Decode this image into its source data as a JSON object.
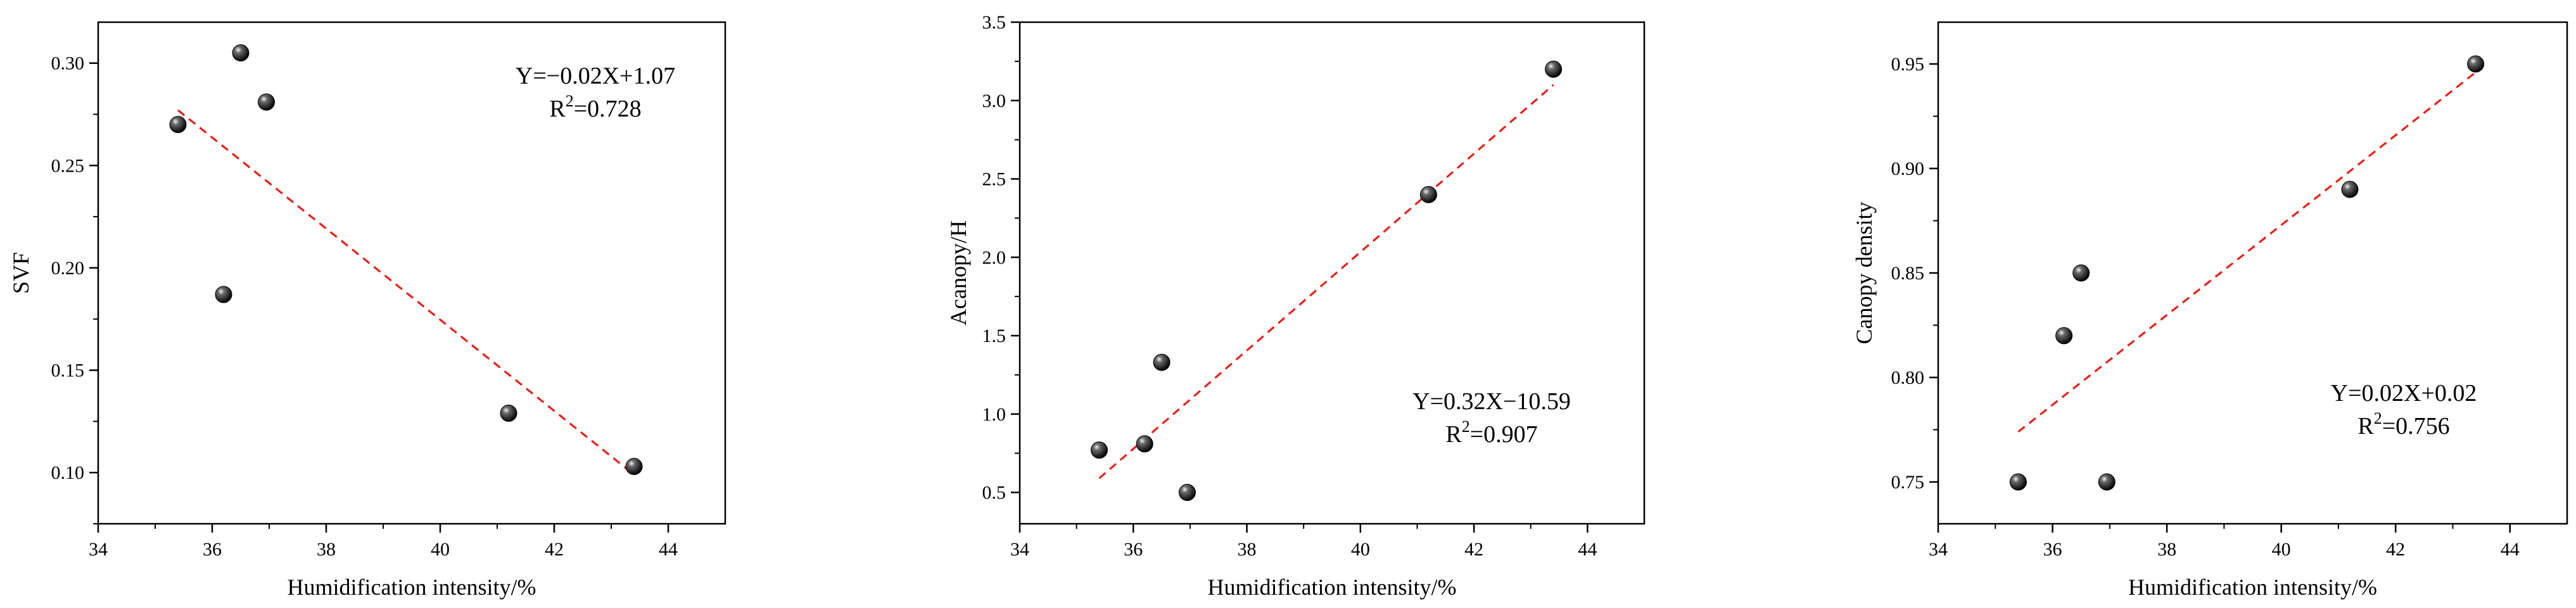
{
  "chart_data": [
    {
      "type": "scatter",
      "xlabel": "Humidification intensity/%",
      "ylabel": "SVF",
      "xlim": [
        34,
        45
      ],
      "ylim": [
        0.075,
        0.32
      ],
      "xticks": [
        "34",
        "36",
        "38",
        "40",
        "42",
        "44"
      ],
      "yticks": [
        "0.10",
        "0.15",
        "0.20",
        "0.25",
        "0.30"
      ],
      "grid": false,
      "points": [
        {
          "x": 35.4,
          "y": 0.27
        },
        {
          "x": 36.2,
          "y": 0.187
        },
        {
          "x": 36.5,
          "y": 0.305
        },
        {
          "x": 36.95,
          "y": 0.281
        },
        {
          "x": 41.2,
          "y": 0.129
        },
        {
          "x": 43.4,
          "y": 0.103
        }
      ],
      "fit": {
        "slope": -0.02,
        "intercept": 1.07,
        "x_range": [
          35.4,
          43.4
        ],
        "y_range": [
          0.277,
          0.099
        ],
        "color": "#e8201a"
      },
      "equation": {
        "pre": "Y=−0.02X+1.07",
        "r_pre": "R",
        "r_sup": "2",
        "r_post": "=0.728"
      }
    },
    {
      "type": "scatter",
      "xlabel": "Humidification intensity/%",
      "ylabel": "Acanopy/H",
      "xlim": [
        34,
        45
      ],
      "ylim": [
        0.3,
        3.5
      ],
      "xticks": [
        "34",
        "36",
        "38",
        "40",
        "42",
        "44"
      ],
      "yticks": [
        "0.5",
        "1.0",
        "1.5",
        "2.0",
        "2.5",
        "3.0",
        "3.5"
      ],
      "grid": false,
      "points": [
        {
          "x": 35.4,
          "y": 0.77
        },
        {
          "x": 36.2,
          "y": 0.81
        },
        {
          "x": 36.5,
          "y": 1.33
        },
        {
          "x": 36.95,
          "y": 0.5
        },
        {
          "x": 41.2,
          "y": 2.4
        },
        {
          "x": 43.4,
          "y": 3.2
        }
      ],
      "fit": {
        "slope": 0.32,
        "intercept": -10.59,
        "x_range": [
          35.4,
          43.4
        ],
        "y_range": [
          0.59,
          3.1
        ],
        "color": "#e8201a"
      },
      "equation": {
        "pre": "Y=0.32X−10.59",
        "r_pre": "R",
        "r_sup": "2",
        "r_post": "=0.907"
      }
    },
    {
      "type": "scatter",
      "xlabel": "Humidification intensity/%",
      "ylabel": "Canopy density",
      "xlim": [
        34,
        45
      ],
      "ylim": [
        0.73,
        0.97
      ],
      "xticks": [
        "34",
        "36",
        "38",
        "40",
        "42",
        "44"
      ],
      "yticks": [
        "0.75",
        "0.80",
        "0.85",
        "0.90",
        "0.95"
      ],
      "grid": false,
      "points": [
        {
          "x": 35.4,
          "y": 0.75
        },
        {
          "x": 36.2,
          "y": 0.82
        },
        {
          "x": 36.5,
          "y": 0.85
        },
        {
          "x": 36.95,
          "y": 0.75
        },
        {
          "x": 41.2,
          "y": 0.89
        },
        {
          "x": 43.4,
          "y": 0.95
        }
      ],
      "fit": {
        "slope": 0.02,
        "intercept": 0.02,
        "x_range": [
          35.4,
          43.4
        ],
        "y_range": [
          0.774,
          0.946
        ],
        "color": "#e8201a"
      },
      "equation": {
        "pre": "Y=0.02X+0.02",
        "r_pre": "R",
        "r_sup": "2",
        "r_post": "=0.756"
      }
    }
  ]
}
